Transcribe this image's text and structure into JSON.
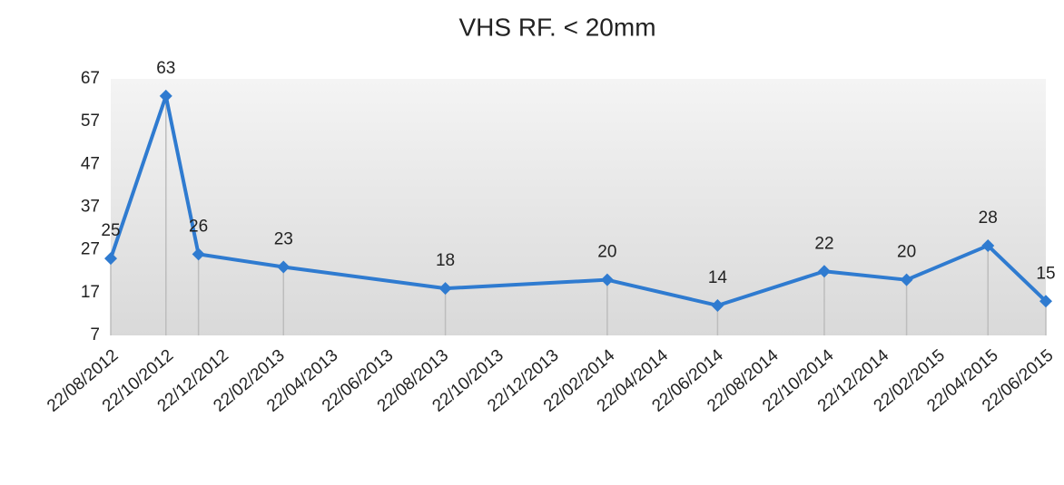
{
  "chart_data": {
    "type": "line",
    "title": "VHS  RF. < 20mm",
    "x": [
      "22/08/2012",
      "22/10/2012",
      "27/11/2012",
      "01/03/2013",
      "27/08/2013",
      "22/02/2014",
      "24/06/2014",
      "20/10/2014",
      "19/01/2015",
      "19/04/2015",
      "22/06/2015"
    ],
    "series": [
      {
        "name": "VHS  RF. < 20mm",
        "color": "#2f7bd0",
        "values": [
          25,
          63,
          26,
          23,
          18,
          20,
          14,
          22,
          20,
          28,
          15
        ]
      }
    ],
    "xlim": [
      "22/08/2012",
      "22/06/2015"
    ],
    "xticks": [
      "22/08/2012",
      "22/10/2012",
      "22/12/2012",
      "22/02/2013",
      "22/04/2013",
      "22/06/2013",
      "22/08/2013",
      "22/10/2013",
      "22/12/2013",
      "22/02/2014",
      "22/04/2014",
      "22/06/2014",
      "22/08/2014",
      "22/10/2014",
      "22/12/2014",
      "22/02/2015",
      "22/04/2015",
      "22/06/2015"
    ],
    "ylim": [
      7,
      67
    ],
    "yticks": [
      7,
      17,
      27,
      37,
      47,
      57,
      67
    ],
    "grid": false
  }
}
